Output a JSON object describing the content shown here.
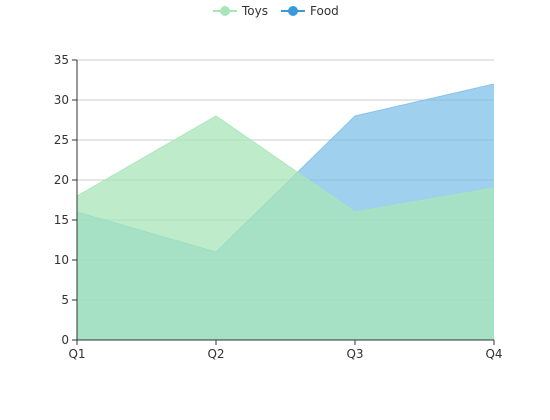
{
  "chart_data": {
    "type": "area",
    "categories": [
      "Q1",
      "Q2",
      "Q3",
      "Q4"
    ],
    "series": [
      {
        "name": "Toys",
        "values": [
          18,
          28,
          16,
          19
        ],
        "color": "#a8e6b8"
      },
      {
        "name": "Food",
        "values": [
          16,
          11,
          28,
          32
        ],
        "color": "#7fc1e8"
      }
    ],
    "line_colors": {
      "Toys": "#a8e6b8",
      "Food": "#3a9ad9"
    },
    "ylim": [
      0,
      35
    ],
    "yticks": [
      0,
      5,
      10,
      15,
      20,
      25,
      30,
      35
    ],
    "grid": true,
    "legend_position": "top-center",
    "title": "",
    "xlabel": "",
    "ylabel": ""
  }
}
